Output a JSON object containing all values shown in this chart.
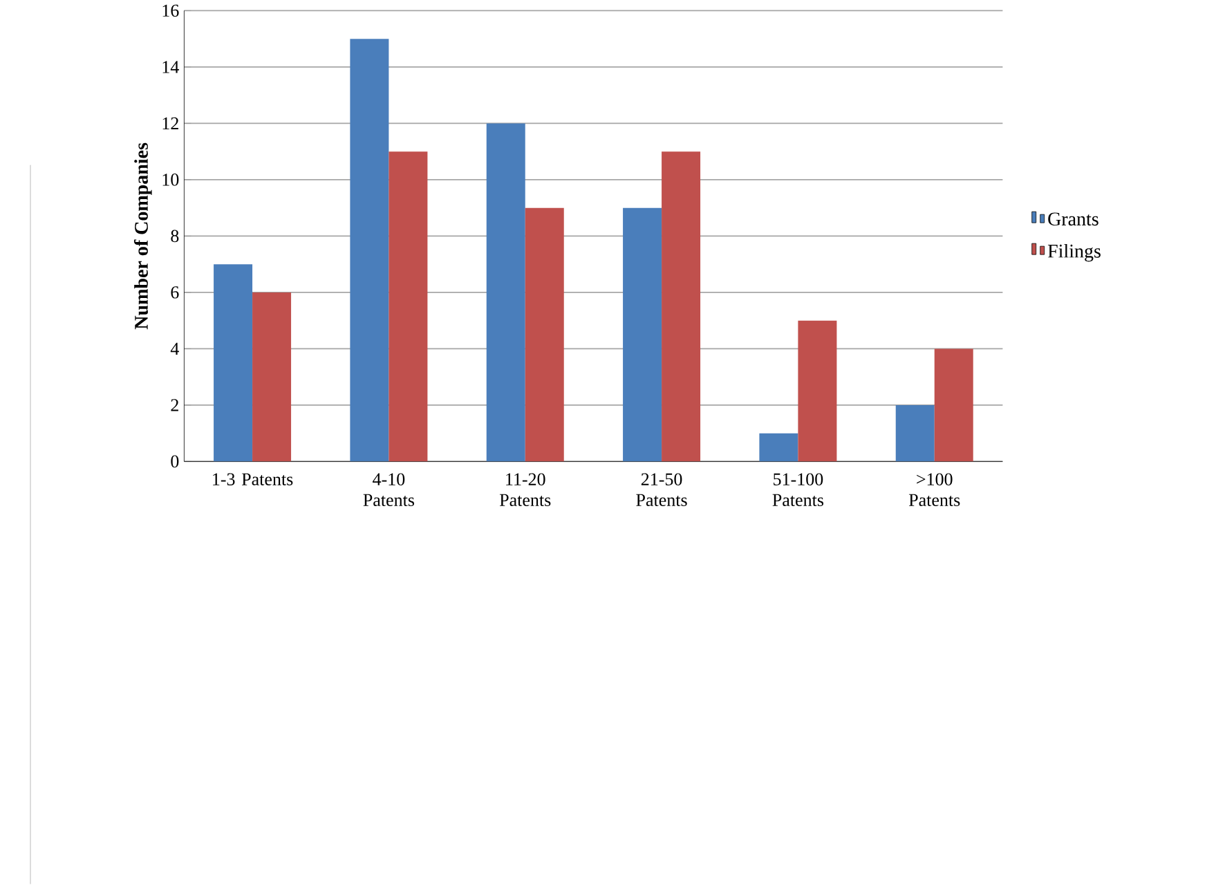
{
  "chart_data": {
    "type": "bar",
    "ylabel": "Number of Companies",
    "categories": [
      "1-3 Patents",
      "4-10 Patents",
      "11-20 Patents",
      "21-50 Patents",
      "51-100 Patents",
      ">100 Patents"
    ],
    "series": [
      {
        "name": "Grants",
        "color": "#4a7ebb",
        "values": [
          7,
          15,
          12,
          9,
          1,
          2
        ]
      },
      {
        "name": "Filings",
        "color": "#c0504d",
        "values": [
          6,
          11,
          9,
          11,
          5,
          4
        ]
      }
    ],
    "ylim": [
      0,
      16
    ],
    "yticks": [
      0,
      2,
      4,
      6,
      8,
      10,
      12,
      14,
      16
    ],
    "grid": "y",
    "legend": "right"
  }
}
